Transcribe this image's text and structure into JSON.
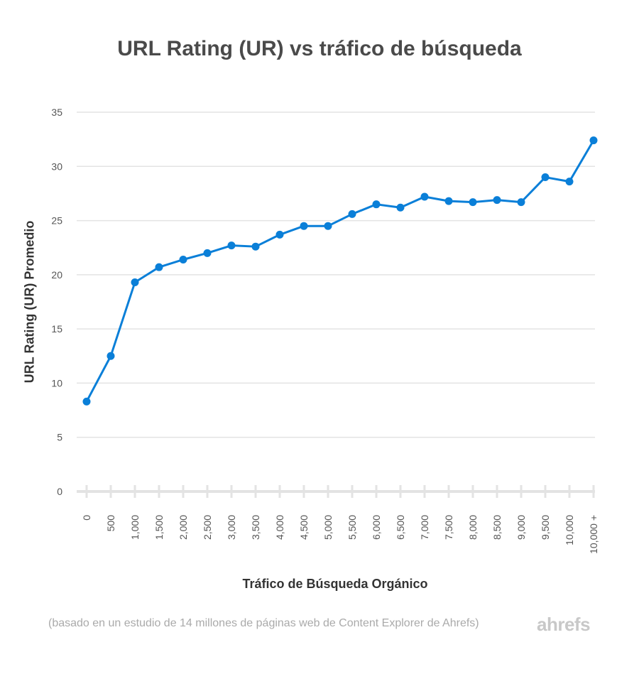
{
  "chart_data": {
    "type": "line",
    "title": "URL Rating (UR) vs tráfico de búsqueda",
    "xlabel": "Tráfico de Búsqueda Orgánico",
    "ylabel": "URL Rating (UR) Promedio",
    "categories": [
      "0",
      "500",
      "1,000",
      "1,500",
      "2,000",
      "2,500",
      "3,000",
      "3,500",
      "4,000",
      "4,500",
      "5,000",
      "5,500",
      "6,000",
      "6,500",
      "7,000",
      "7,500",
      "8,000",
      "8,500",
      "9,000",
      "9,500",
      "10,000",
      "10,000 +"
    ],
    "series": [
      {
        "name": "URL Rating (UR) Promedio",
        "color": "#0a7fd8",
        "values": [
          8.3,
          12.5,
          19.3,
          20.7,
          21.4,
          22.0,
          22.7,
          22.6,
          23.7,
          24.5,
          24.5,
          25.6,
          26.5,
          26.2,
          27.2,
          26.8,
          26.7,
          26.9,
          26.7,
          29.0,
          28.6,
          32.4
        ]
      }
    ],
    "ylim": [
      0,
      35
    ],
    "yticks": [
      "0",
      "5",
      "10",
      "15",
      "20",
      "25",
      "30",
      "35"
    ],
    "grid": true,
    "legend": "none"
  },
  "footnote": "(basado en un estudio de 14 millones de páginas web de Content Explorer de Ahrefs)",
  "logo": "ahrefs"
}
